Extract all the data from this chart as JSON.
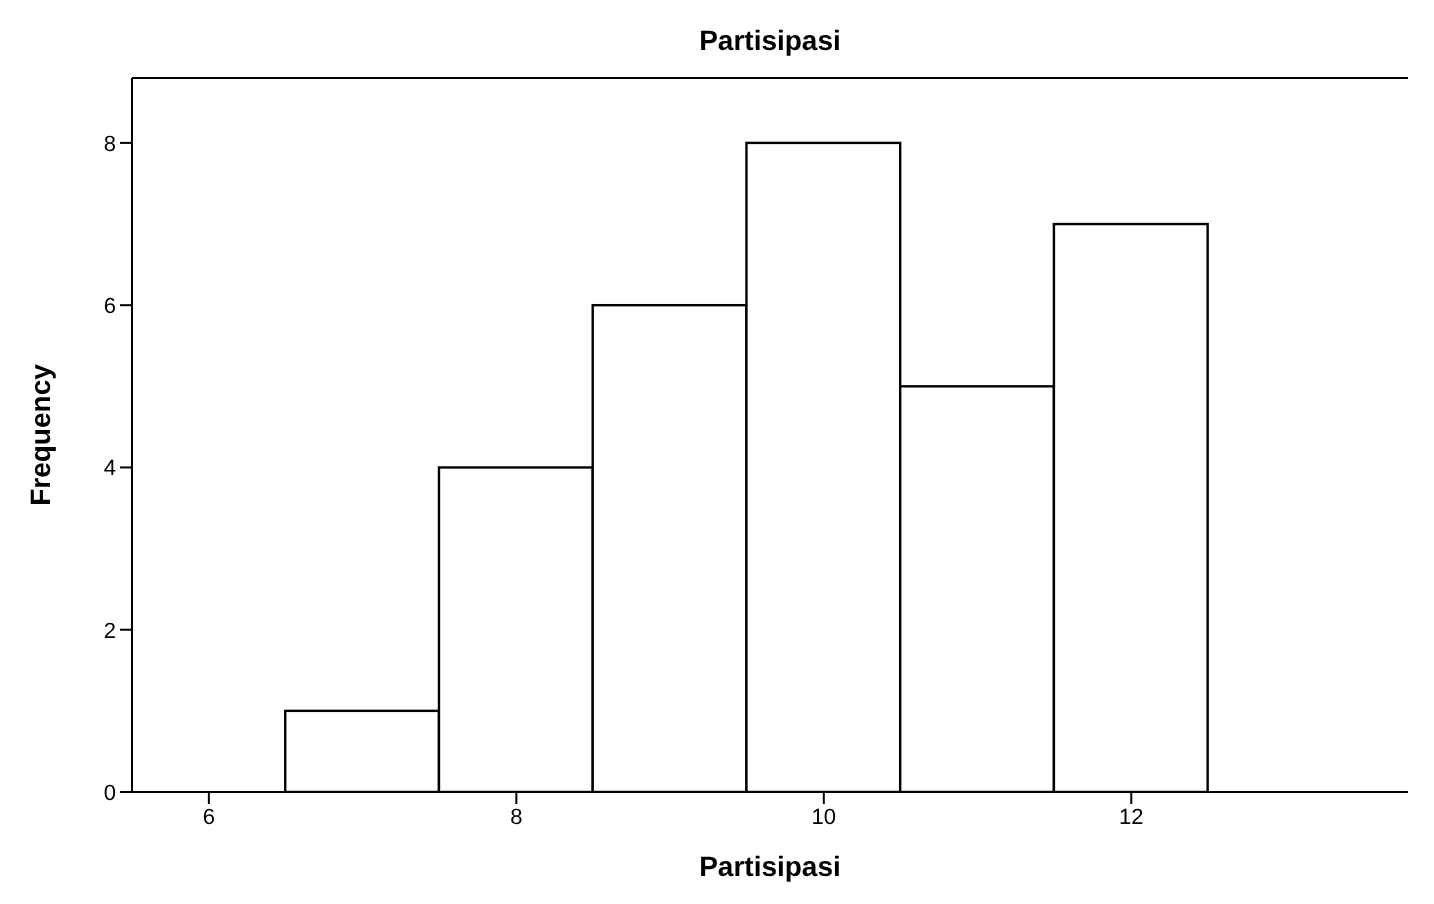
{
  "chart_data": {
    "type": "histogram",
    "title": "Partisipasi",
    "xlabel": "Partisipasi",
    "ylabel": "Frequency",
    "bins": [
      6.5,
      7.5,
      8.5,
      9.5,
      10.5,
      11.5,
      12.5
    ],
    "values": [
      1,
      4,
      6,
      8,
      5,
      7
    ],
    "color": "#ffffff",
    "xlim": [
      5.5,
      13.8
    ],
    "xticks": [
      6,
      8,
      10,
      12
    ],
    "ylim": [
      0,
      8.8
    ],
    "yticks": [
      0,
      2,
      4,
      6,
      8
    ],
    "grid": false,
    "legend": false
  }
}
